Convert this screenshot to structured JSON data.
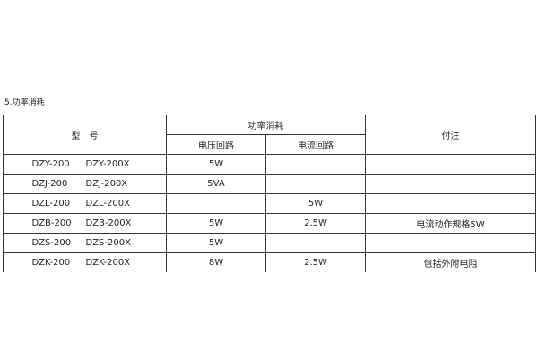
{
  "title": "5.功率消耗",
  "table": {
    "headers": {
      "model": "型　号",
      "power": "功率消耗",
      "voltage": "电压回路",
      "current": "电流回路",
      "note": "付注"
    },
    "rows": [
      {
        "model_a": "DZY-200",
        "model_b": "DZY-200X",
        "voltage": "5W",
        "current": "",
        "note": ""
      },
      {
        "model_a": "DZJ-200",
        "model_b": "DZJ-200X",
        "voltage": "5VA",
        "current": "",
        "note": ""
      },
      {
        "model_a": "DZL-200",
        "model_b": "DZL-200X",
        "voltage": "",
        "current": "5W",
        "note": ""
      },
      {
        "model_a": "DZB-200",
        "model_b": "DZB-200X",
        "voltage": "5W",
        "current": "2.5W",
        "note": "电流动作规格5W"
      },
      {
        "model_a": "DZS-200",
        "model_b": "DZS-200X",
        "voltage": "5W",
        "current": "",
        "note": ""
      },
      {
        "model_a": "DZK-200",
        "model_b": "DZK-200X",
        "voltage": "8W",
        "current": "2.5W",
        "note": "包括外附电阻"
      }
    ]
  }
}
